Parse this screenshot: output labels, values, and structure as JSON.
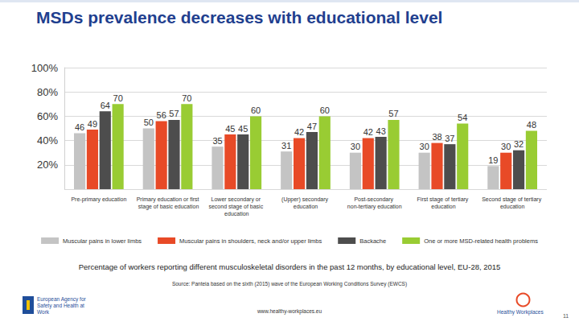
{
  "chart_data": {
    "type": "bar",
    "title": "MSDs prevalence decreases with educational level",
    "categories": [
      "Pre-primary education",
      "Primary education or first stage of basic education",
      "Lower secondary or second stage of basic education",
      "(Upper) secondary education",
      "Post-secondary non-tertiary education",
      "First stage of tertiary education",
      "Second stage of tertiary education"
    ],
    "series": [
      {
        "name": "Muscular pains in lower limbs",
        "color": "#c4c4c4",
        "values": [
          46,
          50,
          35,
          31,
          30,
          30,
          19
        ]
      },
      {
        "name": "Muscular pains in shoulders, neck and/or upper limbs",
        "color": "#e84a27",
        "values": [
          49,
          56,
          45,
          42,
          42,
          38,
          30
        ]
      },
      {
        "name": "Backache",
        "color": "#4d4d4d",
        "values": [
          64,
          57,
          45,
          47,
          43,
          37,
          32
        ]
      },
      {
        "name": "One or more MSD-related health problems",
        "color": "#99cc33",
        "values": [
          70,
          70,
          60,
          60,
          57,
          54,
          48
        ]
      }
    ],
    "ylim": [
      0,
      100
    ],
    "yticks": [
      {
        "value": 20,
        "label": "20%"
      },
      {
        "value": 40,
        "label": "40%"
      },
      {
        "value": 60,
        "label": "60%"
      },
      {
        "value": 80,
        "label": "80%"
      },
      {
        "value": 100,
        "label": "100%"
      }
    ],
    "grid": true,
    "data_labels": true,
    "legend": "bottom"
  },
  "page": {
    "caption": "Percentage of workers reporting different musculoskeletal disorders in the past 12 months, by educational level, EU-28, 2015",
    "source": "Source: Panteia based on the sixth (2015) wave of the European Working Conditions Survey (EWCS)",
    "agency": "European Agency for Safety and Health at Work",
    "url": "www.healthy-workplaces.eu",
    "campaign": "Healthy Workplaces",
    "page_number": "11"
  }
}
